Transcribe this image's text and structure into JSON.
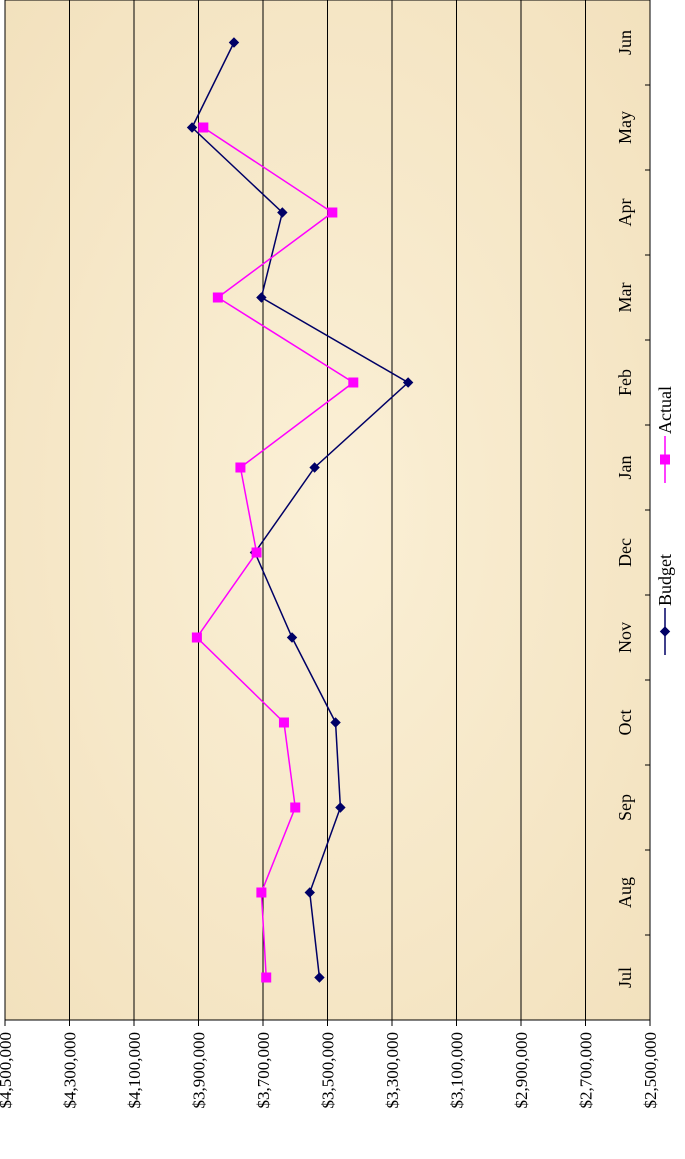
{
  "chart_data": {
    "type": "line",
    "orientation": "rotated-90-clockwise",
    "title": "",
    "xlabel": "",
    "ylabel": "",
    "categories": [
      "Jul",
      "Aug",
      "Sep",
      "Oct",
      "Nov",
      "Dec",
      "Jan",
      "Feb",
      "Mar",
      "Apr",
      "May",
      "Jun"
    ],
    "ylim": [
      2500000,
      4500000
    ],
    "y_ticks": [
      2500000,
      2700000,
      2900000,
      3100000,
      3300000,
      3500000,
      3700000,
      3900000,
      4100000,
      4300000,
      4500000
    ],
    "y_tick_labels": [
      "$2,500,000",
      "$2,700,000",
      "$2,900,000",
      "$3,100,000",
      "$3,300,000",
      "$3,500,000",
      "$3,700,000",
      "$3,900,000",
      "$4,100,000",
      "$4,300,000",
      "$4,500,000"
    ],
    "grid": true,
    "legend_position": "bottom",
    "series": [
      {
        "name": "Budget",
        "color": "#000066",
        "marker": "diamond",
        "values": [
          3525000,
          3555000,
          3460000,
          3475000,
          3610000,
          3725000,
          3540000,
          3250000,
          3705000,
          3640000,
          3920000,
          3790000
        ]
      },
      {
        "name": "Actual",
        "color": "#ff00ff",
        "marker": "square",
        "values": [
          3690000,
          3705000,
          3600000,
          3635000,
          3905000,
          3720000,
          3770000,
          3420000,
          3840000,
          3485000,
          3885000,
          null
        ]
      }
    ],
    "colors": {
      "plot_background": "#f6e7c8",
      "gridline": "#000000"
    }
  }
}
